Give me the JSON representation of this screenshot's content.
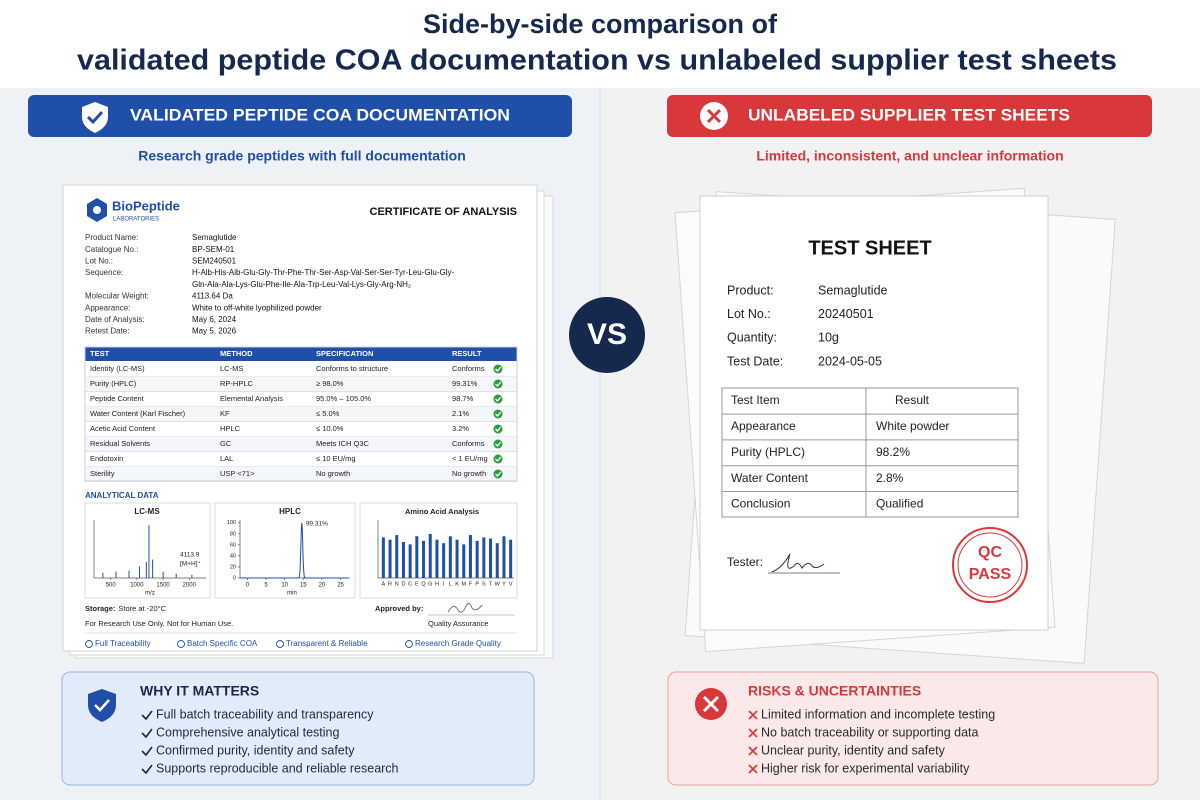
{
  "header": {
    "title_line1": "Side-by-side comparison of",
    "title_line2": "validated peptide COA documentation vs unlabeled supplier test sheets"
  },
  "vs": "VS",
  "left": {
    "banner": "VALIDATED PEPTIDE COA DOCUMENTATION",
    "subtitle": "Research grade peptides with full documentation",
    "coa": {
      "brand": "BioPeptide",
      "brand_sub": "LABORATORIES",
      "title": "CERTIFICATE OF ANALYSIS",
      "fields": [
        {
          "label": "Product Name:",
          "value": [
            "Semaglutide"
          ]
        },
        {
          "label": "Catalogue No.:",
          "value": [
            "BP-SEM-01"
          ]
        },
        {
          "label": "Lot No.:",
          "value": [
            "SEM240501"
          ]
        },
        {
          "label": "Sequence:",
          "value": [
            "H-Aib-His-Aib-Glu-Gly-Thr-Phe-Thr-Ser-Asp-Val-Ser-Ser-Tyr-Leu-Glu-Gly-",
            "Gln-Ala-Ala-Lys-Glu-Phe-Ile-Ala-Trp-Leu-Val-Lys-Gly-Arg-NH₂"
          ]
        },
        {
          "label": "Molecular Weight:",
          "value": [
            "4113.64 Da"
          ]
        },
        {
          "label": "Appearance:",
          "value": [
            "White to off-white lyophilized powder"
          ]
        },
        {
          "label": "Date of Analysis:",
          "value": [
            "May 6, 2024"
          ]
        },
        {
          "label": "Retest Date:",
          "value": [
            "May 5, 2026"
          ]
        }
      ],
      "table": {
        "header": [
          "TEST",
          "METHOD",
          "SPECIFICATION",
          "RESULT"
        ],
        "rows": [
          [
            "Identity (LC-MS)",
            "LC-MS",
            "Conforms to structure",
            "Conforms"
          ],
          [
            "Purity (HPLC)",
            "RP-HPLC",
            "≥ 98.0%",
            "99.31%"
          ],
          [
            "Peptide Content",
            "Elemental Analysis",
            "95.0% – 105.0%",
            "98.7%"
          ],
          [
            "Water Content (Karl Fischer)",
            "KF",
            "≤ 5.0%",
            "2.1%"
          ],
          [
            "Acetic Acid Content",
            "HPLC",
            "≤ 10.0%",
            "3.2%"
          ],
          [
            "Residual Solvents",
            "GC",
            "Meets ICH Q3C",
            "Conforms"
          ],
          [
            "Endotoxin",
            "LAL",
            "≤ 10 EU/mg",
            "< 1 EU/mg"
          ],
          [
            "Sterility",
            "USP <71>",
            "No growth",
            "No growth"
          ]
        ]
      },
      "analytical_title": "ANALYTICAL DATA",
      "lcms": {
        "title": "LC-MS",
        "xlabel": "m/z",
        "xlim": [
          200,
          2300
        ],
        "xticks": [
          500,
          1000,
          1500,
          2000
        ],
        "ylim": [
          0,
          110
        ],
        "peaks": {
          "x": [
            350,
            600,
            850,
            1050,
            1180,
            1230,
            1300,
            1500,
            1750,
            2050
          ],
          "y": [
            10,
            12,
            14,
            22,
            30,
            100,
            35,
            12,
            8,
            6
          ]
        },
        "annotation": [
          "4113.9",
          "[M+H]⁺"
        ]
      },
      "hplc": {
        "title": "HPLC",
        "xlabel": "min",
        "xlim": [
          -2,
          27
        ],
        "xticks": [
          0,
          5,
          10,
          15,
          20,
          25
        ],
        "ylim": [
          0,
          105
        ],
        "yticks": [
          0,
          20,
          40,
          60,
          80,
          100
        ],
        "peak_x": 14.6,
        "peak_label": "99.31%"
      },
      "amino": {
        "title": "Amino Acid Analysis",
        "categories": [
          "A",
          "R",
          "N",
          "D",
          "C",
          "E",
          "Q",
          "G",
          "H",
          "I",
          "L",
          "K",
          "M",
          "F",
          "P",
          "S",
          "T",
          "W",
          "Y",
          "V"
        ],
        "values": [
          70,
          66,
          74,
          62,
          58,
          72,
          64,
          76,
          66,
          60,
          72,
          66,
          58,
          74,
          64,
          70,
          68,
          60,
          72,
          66
        ],
        "ylim": [
          0,
          100
        ]
      },
      "storage_label": "Storage:",
      "storage": "Store at -20°C",
      "notice": "For Research Use Only. Not for Human Use.",
      "approved_by": "Approved by:",
      "approver_role": "Quality Assurance",
      "footer": [
        "Full Traceability",
        "Batch Specific COA",
        "Transparent & Reliable",
        "Research Grade Quality"
      ]
    },
    "why": {
      "title": "WHY IT MATTERS",
      "items": [
        "Full batch traceability and transparency",
        "Comprehensive analytical testing",
        "Confirmed purity, identity and safety",
        "Supports reproducible and reliable research"
      ]
    }
  },
  "right": {
    "banner": "UNLABELED SUPPLIER TEST SHEETS",
    "subtitle": "Limited, inconsistent, and unclear information",
    "sheet": {
      "title": "TEST SHEET",
      "fields": [
        [
          "Product:",
          "Semaglutide"
        ],
        [
          "Lot No.:",
          "20240501"
        ],
        [
          "Quantity:",
          "10g"
        ],
        [
          "Test Date:",
          "2024-05-05"
        ]
      ],
      "table": {
        "header": [
          "Test Item",
          "Result"
        ],
        "rows": [
          [
            "Appearance",
            "White powder"
          ],
          [
            "Purity (HPLC)",
            "98.2%"
          ],
          [
            "Water Content",
            "2.8%"
          ],
          [
            "Conclusion",
            "Qualified"
          ]
        ]
      },
      "tester": "Tester:",
      "stamp": [
        "QC",
        "PASS"
      ]
    },
    "risks": {
      "title": "RISKS & UNCERTAINTIES",
      "items": [
        "Limited information and incomplete testing",
        "No batch traceability or supporting data",
        "Unclear purity, identity and safety",
        "Higher risk for experimental variability"
      ]
    }
  }
}
